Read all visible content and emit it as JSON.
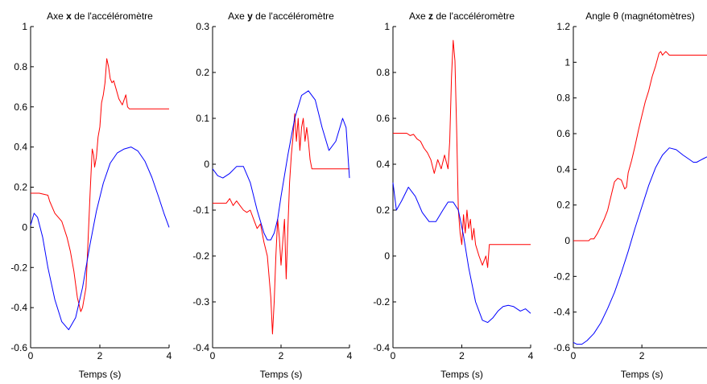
{
  "chart_data": [
    {
      "type": "line",
      "title_pre": "Axe ",
      "title_bold": "x",
      "title_post": " de l'accéléromètre",
      "xlabel": "Temps (s)",
      "ylabel": "",
      "xlim": [
        0,
        4
      ],
      "ylim": [
        -0.6,
        1
      ],
      "xticks": [
        0,
        2,
        4
      ],
      "yticks": [
        -0.6,
        -0.4,
        -0.2,
        0,
        0.2,
        0.4,
        0.6,
        0.8,
        1
      ],
      "ytick_labels": [
        "-0.6",
        "-0.4",
        "-0.2",
        "0",
        "0.2",
        "0.4",
        "0.6",
        "0.8",
        "1"
      ],
      "grid": false,
      "series": [
        {
          "color": "#ff0000",
          "x": [
            0,
            0.25,
            0.5,
            0.55,
            0.7,
            0.8,
            0.9,
            1.05,
            1.15,
            1.25,
            1.35,
            1.45,
            1.5,
            1.6,
            1.65,
            1.72,
            1.78,
            1.82,
            1.85,
            1.9,
            1.95,
            2.0,
            2.05,
            2.1,
            2.15,
            2.2,
            2.25,
            2.3,
            2.35,
            2.4,
            2.45,
            2.55,
            2.65,
            2.75,
            2.8,
            2.85,
            2.9,
            3.0,
            3.5,
            4.0
          ],
          "y": [
            0.17,
            0.17,
            0.16,
            0.13,
            0.07,
            0.05,
            0.03,
            -0.05,
            -0.12,
            -0.22,
            -0.35,
            -0.42,
            -0.4,
            -0.3,
            -0.1,
            0.18,
            0.39,
            0.36,
            0.3,
            0.35,
            0.45,
            0.5,
            0.62,
            0.66,
            0.72,
            0.84,
            0.8,
            0.74,
            0.72,
            0.73,
            0.7,
            0.64,
            0.61,
            0.66,
            0.6,
            0.59,
            0.59,
            0.59,
            0.59,
            0.59
          ]
        },
        {
          "color": "#0000ff",
          "x": [
            0,
            0.1,
            0.2,
            0.35,
            0.5,
            0.7,
            0.9,
            1.1,
            1.3,
            1.5,
            1.7,
            1.9,
            2.1,
            2.3,
            2.5,
            2.7,
            2.9,
            3.1,
            3.3,
            3.5,
            3.7,
            3.85,
            4.0
          ],
          "y": [
            0.01,
            0.07,
            0.05,
            -0.05,
            -0.2,
            -0.36,
            -0.47,
            -0.51,
            -0.45,
            -0.3,
            -0.1,
            0.08,
            0.22,
            0.32,
            0.37,
            0.39,
            0.4,
            0.38,
            0.33,
            0.25,
            0.15,
            0.07,
            0.0
          ]
        }
      ]
    },
    {
      "type": "line",
      "title_pre": "Axe ",
      "title_bold": "y",
      "title_post": " de l'accéléromètre",
      "xlabel": "Temps (s)",
      "ylabel": "",
      "xlim": [
        0,
        4
      ],
      "ylim": [
        -0.4,
        0.3
      ],
      "xticks": [
        0,
        2,
        4
      ],
      "yticks": [
        -0.4,
        -0.3,
        -0.2,
        -0.1,
        0,
        0.1,
        0.2,
        0.3
      ],
      "ytick_labels": [
        "-0.4",
        "-0.3",
        "-0.2",
        "-0.1",
        "0",
        "0.1",
        "0.2",
        "0.3"
      ],
      "grid": false,
      "series": [
        {
          "color": "#ff0000",
          "x": [
            0,
            0.4,
            0.5,
            0.6,
            0.7,
            0.8,
            0.9,
            1.0,
            1.1,
            1.2,
            1.3,
            1.4,
            1.5,
            1.6,
            1.7,
            1.75,
            1.8,
            1.85,
            1.9,
            1.95,
            2.0,
            2.05,
            2.1,
            2.15,
            2.2,
            2.25,
            2.3,
            2.35,
            2.4,
            2.45,
            2.5,
            2.55,
            2.6,
            2.65,
            2.7,
            2.75,
            2.8,
            2.85,
            2.9,
            3.0,
            3.5,
            4.0
          ],
          "y": [
            -0.085,
            -0.085,
            -0.075,
            -0.09,
            -0.08,
            -0.09,
            -0.1,
            -0.105,
            -0.1,
            -0.12,
            -0.14,
            -0.13,
            -0.17,
            -0.2,
            -0.29,
            -0.37,
            -0.3,
            -0.2,
            -0.12,
            -0.16,
            -0.22,
            -0.17,
            -0.12,
            -0.25,
            -0.14,
            -0.04,
            0.02,
            0.06,
            0.11,
            0.05,
            0.1,
            0.03,
            0.08,
            0.1,
            0.05,
            0.08,
            0.05,
            0.01,
            -0.01,
            -0.01,
            -0.01,
            -0.01
          ]
        },
        {
          "color": "#0000ff",
          "x": [
            0,
            0.15,
            0.3,
            0.5,
            0.7,
            0.9,
            1.1,
            1.3,
            1.5,
            1.6,
            1.7,
            1.8,
            1.9,
            2.0,
            2.2,
            2.4,
            2.6,
            2.8,
            3.0,
            3.2,
            3.4,
            3.6,
            3.8,
            3.9,
            4.0
          ],
          "y": [
            -0.01,
            -0.025,
            -0.03,
            -0.02,
            -0.005,
            -0.005,
            -0.04,
            -0.1,
            -0.15,
            -0.165,
            -0.165,
            -0.15,
            -0.12,
            -0.07,
            0.02,
            0.1,
            0.15,
            0.16,
            0.14,
            0.08,
            0.03,
            0.05,
            0.1,
            0.08,
            -0.03
          ]
        }
      ]
    },
    {
      "type": "line",
      "title_pre": "Axe ",
      "title_bold": "z",
      "title_post": " de l'accéléromètre",
      "xlabel": "Temps (s)",
      "ylabel": "",
      "xlim": [
        0,
        4
      ],
      "ylim": [
        -0.4,
        1
      ],
      "xticks": [
        0,
        2,
        4
      ],
      "yticks": [
        -0.4,
        -0.2,
        0,
        0.2,
        0.4,
        0.6,
        0.8,
        1
      ],
      "ytick_labels": [
        "-0.4",
        "-0.2",
        "0",
        "0.2",
        "0.4",
        "0.6",
        "0.8",
        "1"
      ],
      "grid": false,
      "series": [
        {
          "color": "#ff0000",
          "x": [
            0,
            0.4,
            0.5,
            0.6,
            0.7,
            0.8,
            0.9,
            1.0,
            1.1,
            1.2,
            1.3,
            1.4,
            1.5,
            1.6,
            1.65,
            1.7,
            1.75,
            1.8,
            1.85,
            1.9,
            1.95,
            2.0,
            2.05,
            2.1,
            2.15,
            2.2,
            2.25,
            2.3,
            2.35,
            2.4,
            2.5,
            2.6,
            2.7,
            2.75,
            2.8,
            2.9,
            3.0,
            3.5,
            4.0
          ],
          "y": [
            0.535,
            0.535,
            0.525,
            0.53,
            0.51,
            0.5,
            0.47,
            0.45,
            0.42,
            0.36,
            0.42,
            0.38,
            0.44,
            0.38,
            0.5,
            0.78,
            0.94,
            0.85,
            0.55,
            0.2,
            0.1,
            0.05,
            0.18,
            0.1,
            0.2,
            0.12,
            0.16,
            0.07,
            0.12,
            0.05,
            0.0,
            -0.04,
            0.0,
            -0.05,
            0.05,
            0.05,
            0.05,
            0.05,
            0.05
          ]
        },
        {
          "color": "#0000ff",
          "x": [
            0,
            0.1,
            0.25,
            0.45,
            0.65,
            0.85,
            1.05,
            1.25,
            1.45,
            1.6,
            1.75,
            1.9,
            2.05,
            2.2,
            2.4,
            2.6,
            2.75,
            2.9,
            3.05,
            3.2,
            3.35,
            3.5,
            3.7,
            3.85,
            4.0
          ],
          "y": [
            0.32,
            0.2,
            0.24,
            0.3,
            0.26,
            0.19,
            0.15,
            0.15,
            0.2,
            0.235,
            0.235,
            0.2,
            0.09,
            -0.05,
            -0.2,
            -0.28,
            -0.29,
            -0.27,
            -0.24,
            -0.22,
            -0.215,
            -0.22,
            -0.24,
            -0.23,
            -0.25
          ]
        }
      ]
    },
    {
      "type": "line",
      "title_pre": "Angle θ (magnétomètres)",
      "title_bold": "",
      "title_post": "",
      "xlabel": "Temps (s)",
      "ylabel": "",
      "xlim": [
        0,
        3.9
      ],
      "ylim": [
        -0.6,
        1.2
      ],
      "xticks": [
        0,
        2
      ],
      "yticks": [
        -0.6,
        -0.4,
        -0.2,
        0,
        0.2,
        0.4,
        0.6,
        0.8,
        1,
        1.2
      ],
      "ytick_labels": [
        "-0.6",
        "-0.4",
        "-0.2",
        "0",
        "0.2",
        "0.4",
        "0.6",
        "0.8",
        "1",
        "1.2"
      ],
      "grid": false,
      "series": [
        {
          "color": "#ff0000",
          "x": [
            0,
            0.45,
            0.5,
            0.6,
            0.7,
            0.8,
            0.9,
            1.0,
            1.1,
            1.2,
            1.3,
            1.4,
            1.5,
            1.55,
            1.6,
            1.7,
            1.8,
            1.9,
            2.0,
            2.1,
            2.2,
            2.3,
            2.4,
            2.5,
            2.55,
            2.6,
            2.65,
            2.7,
            2.75,
            2.8,
            2.9,
            3.0,
            3.9
          ],
          "y": [
            0.0,
            0.0,
            0.01,
            0.01,
            0.04,
            0.08,
            0.12,
            0.17,
            0.25,
            0.33,
            0.35,
            0.34,
            0.29,
            0.3,
            0.38,
            0.45,
            0.53,
            0.62,
            0.7,
            0.78,
            0.84,
            0.92,
            0.98,
            1.05,
            1.06,
            1.04,
            1.05,
            1.06,
            1.05,
            1.04,
            1.04,
            1.04,
            1.04
          ]
        },
        {
          "color": "#0000ff",
          "x": [
            0,
            0.1,
            0.25,
            0.4,
            0.6,
            0.8,
            1.0,
            1.2,
            1.4,
            1.6,
            1.8,
            2.0,
            2.2,
            2.4,
            2.6,
            2.8,
            3.0,
            3.2,
            3.35,
            3.5,
            3.6,
            3.7,
            3.8,
            3.9
          ],
          "y": [
            -0.57,
            -0.58,
            -0.58,
            -0.56,
            -0.52,
            -0.46,
            -0.38,
            -0.29,
            -0.18,
            -0.06,
            0.07,
            0.19,
            0.31,
            0.41,
            0.48,
            0.52,
            0.51,
            0.48,
            0.46,
            0.44,
            0.44,
            0.45,
            0.46,
            0.47
          ]
        }
      ]
    }
  ]
}
